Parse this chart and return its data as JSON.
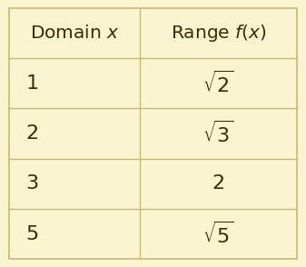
{
  "background_color": "#faf5d0",
  "border_color": "#c8b870",
  "line_color": "#c8b870",
  "text_color": "#3d2b00",
  "header_row": [
    "Domain $x$",
    "Range $f(x)$"
  ],
  "data_rows": [
    [
      "1",
      "$\\sqrt{2}$"
    ],
    [
      "2",
      "$\\sqrt{3}$"
    ],
    [
      "3",
      "2"
    ],
    [
      "5",
      "$\\sqrt{5}$"
    ]
  ],
  "col_split": 0.455,
  "header_fontsize": 14.5,
  "cell_fontsize": 16,
  "figsize": [
    3.37,
    2.94
  ],
  "dpi": 100
}
